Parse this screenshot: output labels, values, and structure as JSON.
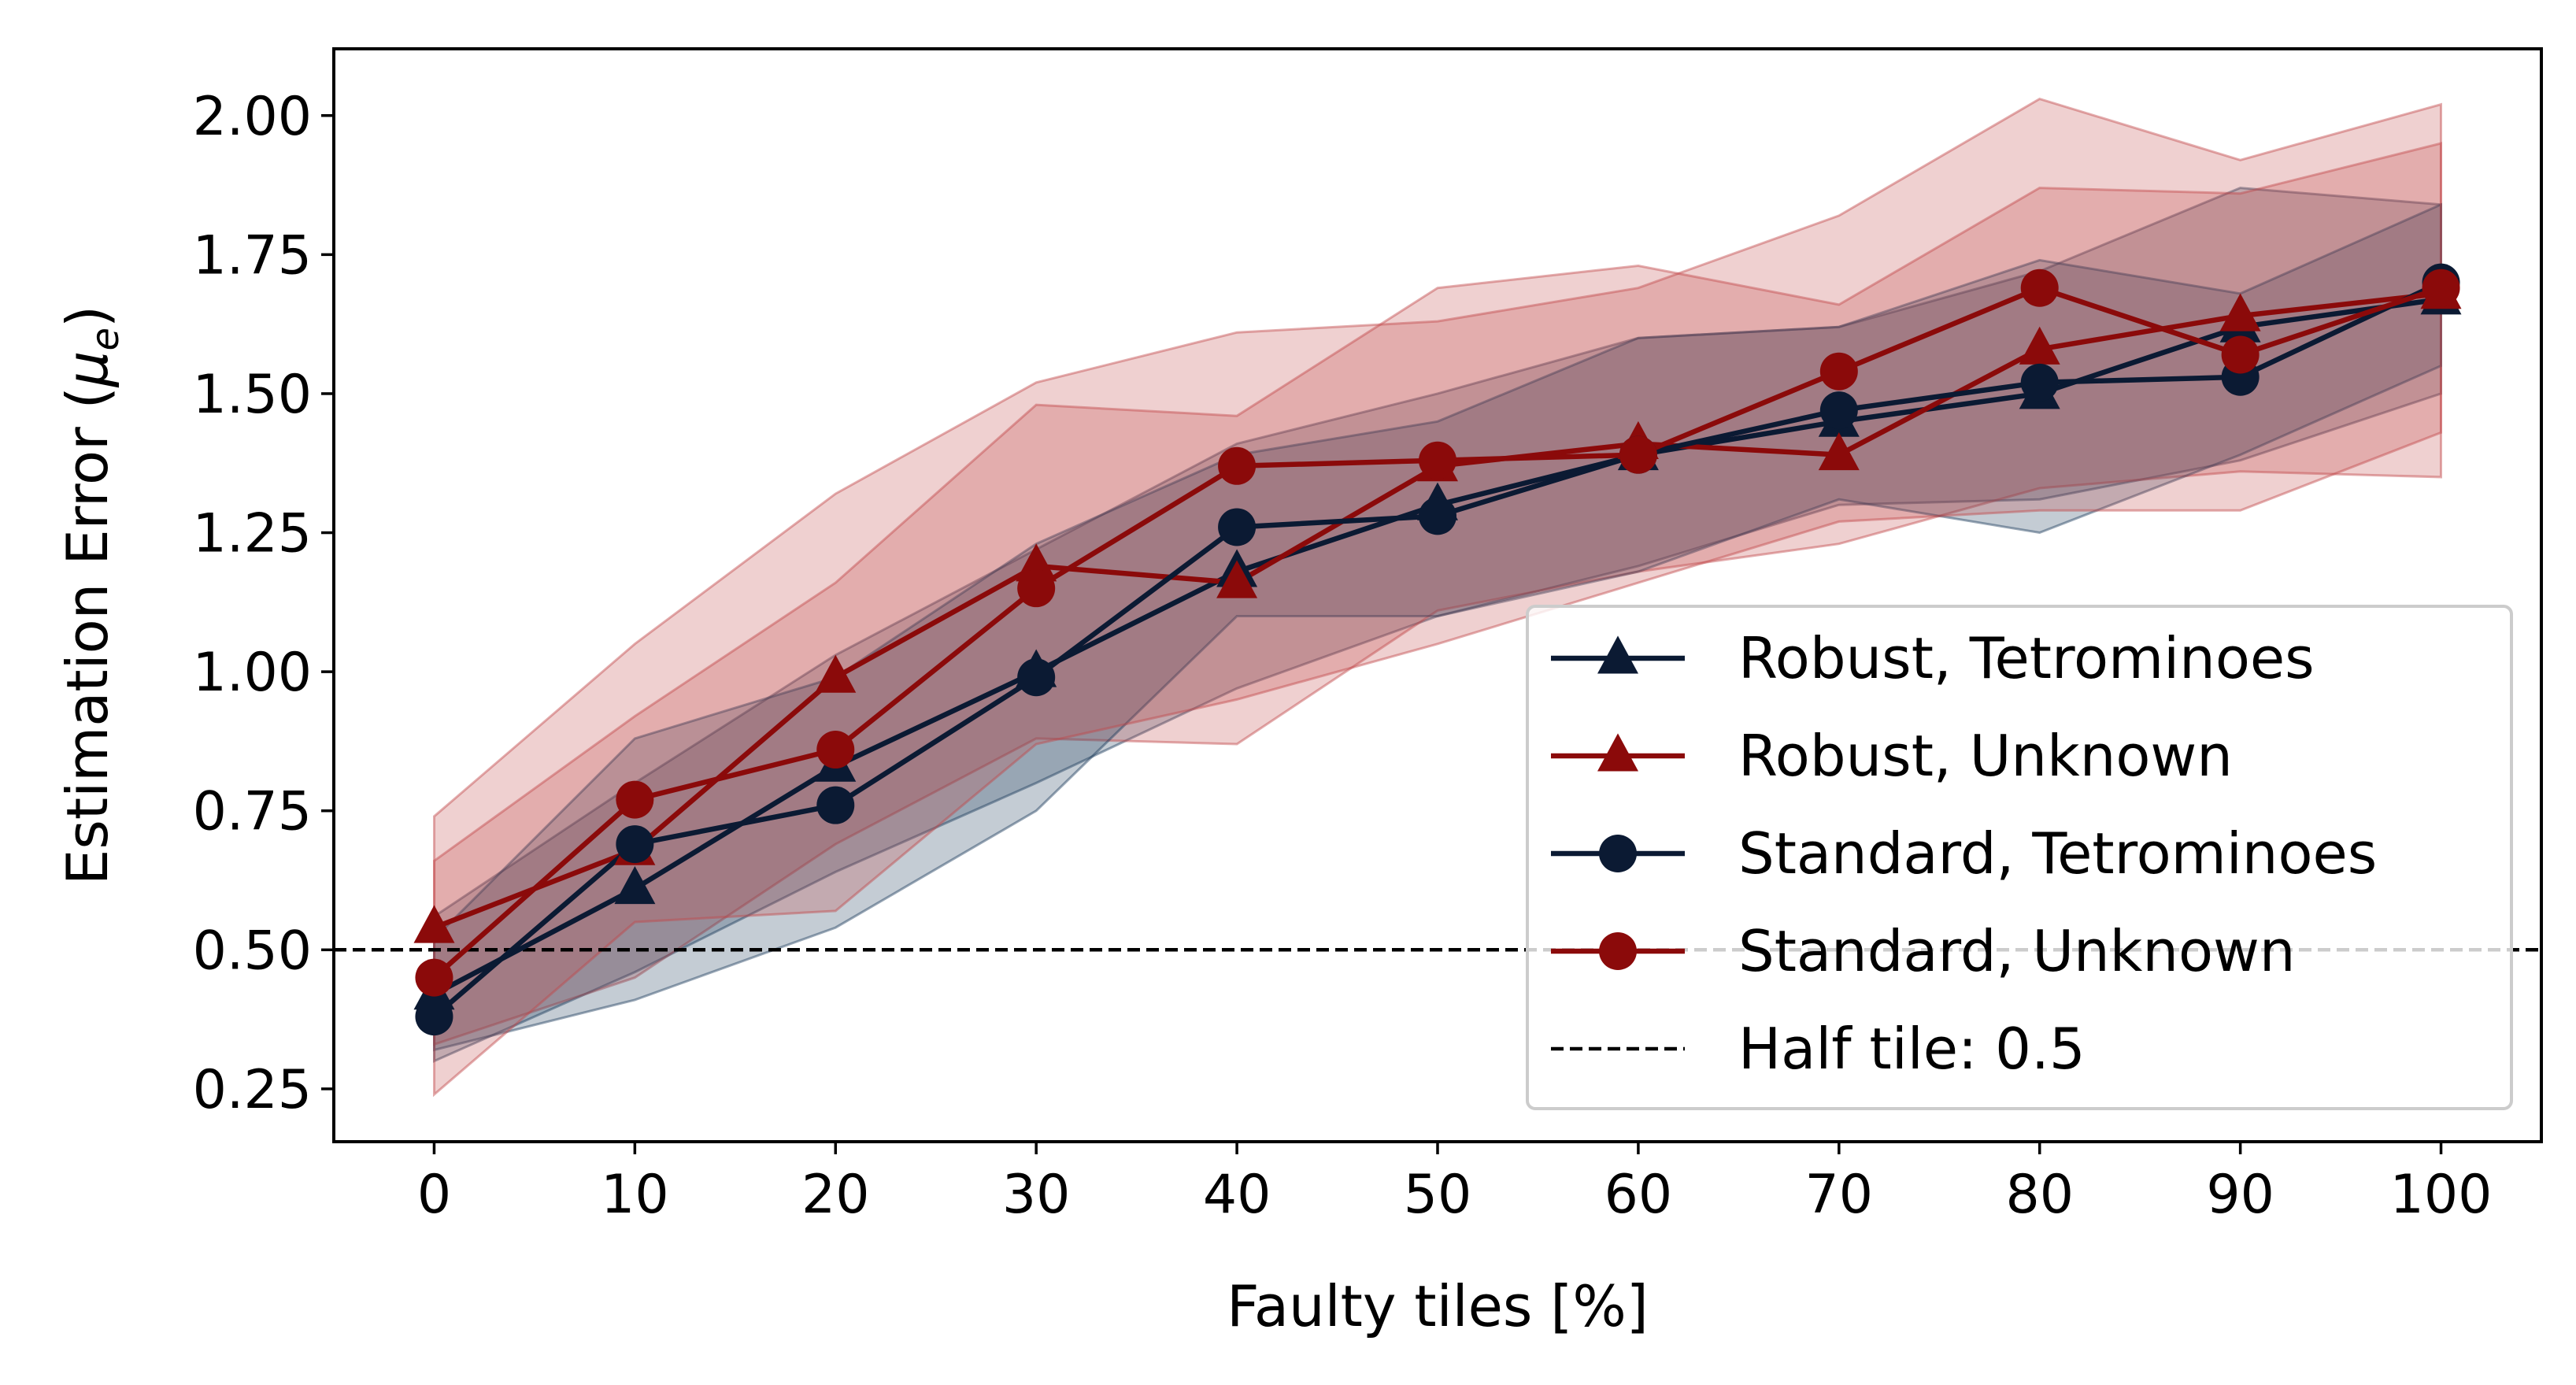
{
  "colors": {
    "navy": "#0b1a33",
    "red": "#8b0a0a",
    "navy_band": "#1b3a5a",
    "red_band": "#c0484a"
  },
  "chart_data": {
    "type": "line",
    "xlabel": "Faulty tiles [%]",
    "ylabel": "Estimation Error (μe)",
    "ylabel_main": "Estimation Error (",
    "ylabel_symbol": "μ",
    "ylabel_sub": "e",
    "ylabel_close": ")",
    "xlim": [
      -5,
      105
    ],
    "ylim": [
      0.155,
      2.12
    ],
    "xticks": [
      0,
      10,
      20,
      30,
      40,
      50,
      60,
      70,
      80,
      90,
      100
    ],
    "yticks": [
      0.25,
      0.5,
      0.75,
      1.0,
      1.25,
      1.5,
      1.75,
      2.0
    ],
    "ytick_labels": [
      "0.25",
      "0.50",
      "0.75",
      "1.00",
      "1.25",
      "1.50",
      "1.75",
      "2.00"
    ],
    "grid": false,
    "legend_position": "lower-right",
    "x": [
      0,
      10,
      20,
      30,
      40,
      50,
      60,
      70,
      80,
      90,
      100
    ],
    "series": [
      {
        "name": "Robust, Tetrominoes",
        "color": "navy",
        "marker": "triangle",
        "values": [
          0.42,
          0.61,
          0.83,
          1.0,
          1.18,
          1.3,
          1.39,
          1.45,
          1.5,
          1.62,
          1.67
        ],
        "band_lower": [
          0.3,
          0.46,
          0.64,
          0.8,
          0.97,
          1.1,
          1.19,
          1.3,
          1.31,
          1.38,
          1.5
        ],
        "band_upper": [
          0.56,
          0.8,
          1.03,
          1.22,
          1.41,
          1.5,
          1.6,
          1.62,
          1.72,
          1.87,
          1.84
        ]
      },
      {
        "name": "Robust, Unknown",
        "color": "red",
        "marker": "triangle",
        "values": [
          0.54,
          0.68,
          0.99,
          1.19,
          1.16,
          1.37,
          1.41,
          1.39,
          1.58,
          1.64,
          1.68
        ],
        "band_lower": [
          0.33,
          0.45,
          0.69,
          0.88,
          0.87,
          1.11,
          1.18,
          1.23,
          1.33,
          1.36,
          1.35
        ],
        "band_upper": [
          0.74,
          1.05,
          1.32,
          1.52,
          1.61,
          1.63,
          1.69,
          1.82,
          2.03,
          1.92,
          2.02
        ]
      },
      {
        "name": "Standard, Tetrominoes",
        "color": "navy",
        "marker": "circle",
        "values": [
          0.38,
          0.69,
          0.76,
          0.99,
          1.26,
          1.28,
          1.39,
          1.47,
          1.52,
          1.53,
          1.7
        ],
        "band_lower": [
          0.32,
          0.41,
          0.54,
          0.75,
          1.1,
          1.1,
          1.18,
          1.31,
          1.25,
          1.39,
          1.55
        ],
        "band_upper": [
          0.52,
          0.88,
          0.99,
          1.23,
          1.39,
          1.45,
          1.6,
          1.62,
          1.74,
          1.68,
          1.84
        ]
      },
      {
        "name": "Standard, Unknown",
        "color": "red",
        "marker": "circle",
        "values": [
          0.45,
          0.77,
          0.86,
          1.15,
          1.37,
          1.38,
          1.39,
          1.54,
          1.69,
          1.57,
          1.69
        ],
        "band_lower": [
          0.24,
          0.55,
          0.57,
          0.87,
          0.95,
          1.05,
          1.16,
          1.27,
          1.29,
          1.29,
          1.43
        ],
        "band_upper": [
          0.66,
          0.92,
          1.16,
          1.48,
          1.46,
          1.69,
          1.73,
          1.66,
          1.87,
          1.86,
          1.95
        ]
      }
    ],
    "reference_line": {
      "name": "Half tile: 0.5",
      "value": 0.5,
      "style": "dashed"
    }
  }
}
